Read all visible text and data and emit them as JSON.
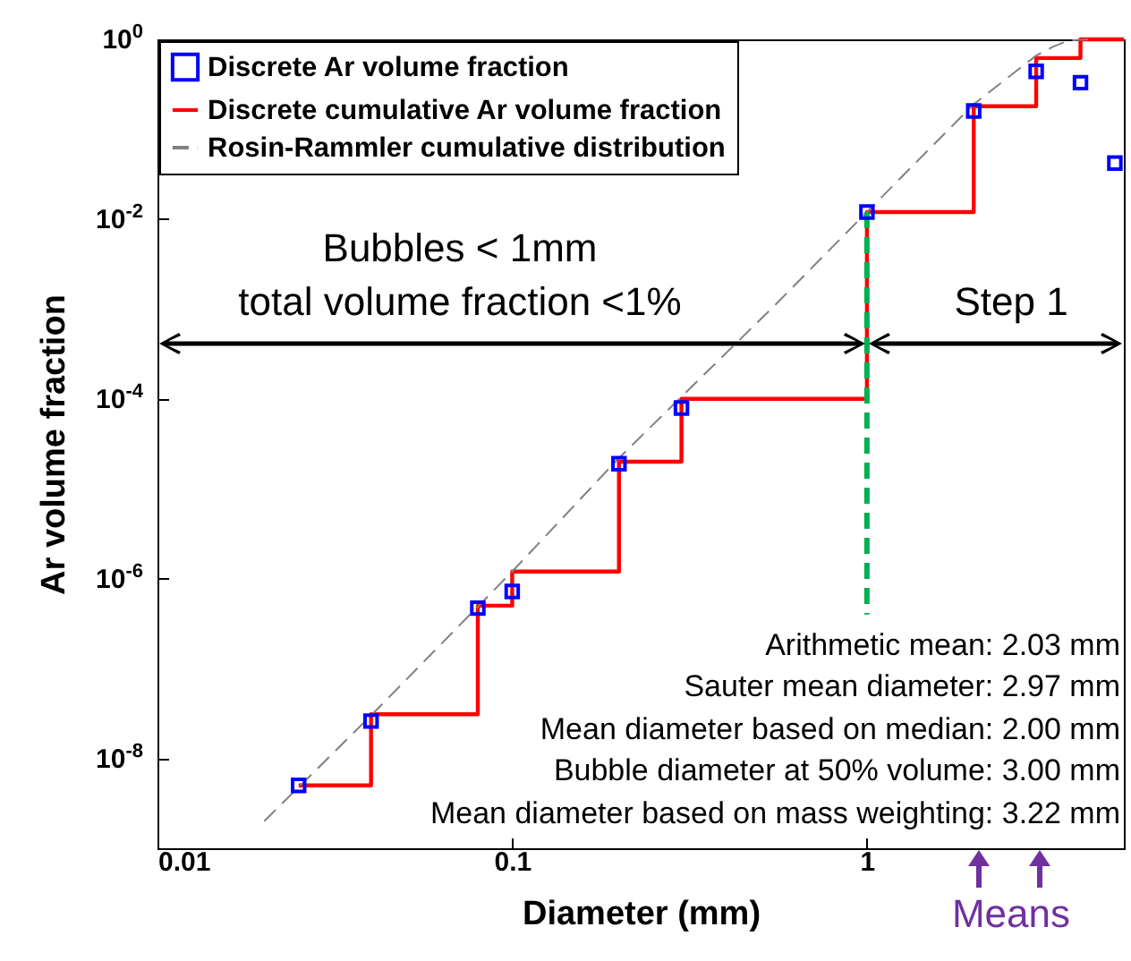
{
  "chart_data": {
    "type": "scatter",
    "xlabel": "Diameter (mm)",
    "ylabel": "Ar volume fraction",
    "log": "xy",
    "grid": false,
    "legend": "top left",
    "xlim": [
      0.01,
      5.3
    ],
    "xticks": [
      0.01,
      0.1,
      1
    ],
    "ylim": [
      1e-09,
      1
    ],
    "yticks": [
      {
        "value": 1e-08,
        "label": "10$^{-8}$"
      },
      {
        "value": 1e-06,
        "label": "10$^{-6}$"
      },
      {
        "value": 0.0001,
        "label": "10$^{-4}$"
      },
      {
        "value": 0.01,
        "label": "10$^{-2}$"
      },
      {
        "value": 1,
        "label": "10$^{0}$"
      }
    ],
    "series": [
      {
        "name": "Discrete Ar volume fraction",
        "marker": "square",
        "color": "#0000ff",
        "x": [
          0.025,
          0.04,
          0.08,
          0.1,
          0.2,
          0.3,
          1,
          2,
          3,
          4,
          5
        ],
        "values": [
          5e-09,
          2.6e-08,
          4.7e-07,
          7.2e-07,
          1.9e-05,
          7.9e-05,
          0.012,
          0.16,
          0.44,
          0.33,
          0.042
        ]
      },
      {
        "name": "Discrete cumulative Ar volume fraction",
        "type": "step",
        "color": "#ff0000",
        "x": [
          0.025,
          0.04,
          0.08,
          0.1,
          0.2,
          0.3,
          1,
          2,
          3,
          4,
          5.3
        ],
        "values": [
          5e-09,
          3.1e-08,
          5e-07,
          1.2e-06,
          2e-05,
          0.0001,
          0.012,
          0.18,
          0.62,
          1,
          1
        ]
      },
      {
        "name": "Rosin-Rammler cumulative distribution",
        "type": "line",
        "color": "#808080",
        "line_style": "dashed",
        "x": [
          0.02,
          0.04,
          0.1,
          0.2,
          0.55,
          1,
          2,
          3,
          3.35,
          3.7,
          4.2
        ],
        "values": [
          2e-09,
          3e-08,
          1.2e-06,
          2.2e-05,
          0.0011,
          0.012,
          0.19,
          0.66,
          0.83,
          0.97,
          1
        ]
      },
      {
        "type": "line",
        "color": "#00b050",
        "line_style": "dashed",
        "x": [
          1,
          1
        ],
        "values": [
          0.012,
          4e-07
        ]
      }
    ],
    "annotations": [
      "Bubbles < 1mm",
      "total volume fraction <1%",
      "Step 1",
      "Arithmetic mean: 2.03 mm",
      "Sauter mean diameter: 2.97 mm",
      "Mean diameter based on median: 2.00 mm",
      "Bubble diameter at 50% volume: 3.00 mm",
      "Mean diameter based on mass weighting: 3.22 mm",
      "Means"
    ]
  }
}
